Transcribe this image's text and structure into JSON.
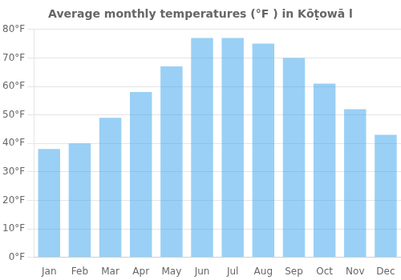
{
  "chart_data": {
    "type": "bar",
    "title": "Average monthly temperatures (°F ) in Kōṭowā l",
    "categories": [
      "Jan",
      "Feb",
      "Mar",
      "Apr",
      "May",
      "Jun",
      "Jul",
      "Aug",
      "Sep",
      "Oct",
      "Nov",
      "Dec"
    ],
    "values": [
      38,
      40,
      49,
      58,
      67,
      77,
      77,
      75,
      70,
      61,
      52,
      43
    ],
    "ylim": [
      0,
      80
    ],
    "yticks": [
      {
        "value": 0,
        "label": "0°F"
      },
      {
        "value": 10,
        "label": "10°F"
      },
      {
        "value": 20,
        "label": "20°F"
      },
      {
        "value": 30,
        "label": "30°F"
      },
      {
        "value": 40,
        "label": "40°F"
      },
      {
        "value": 50,
        "label": "50°F"
      },
      {
        "value": 60,
        "label": "60°F"
      },
      {
        "value": 70,
        "label": "70°F"
      },
      {
        "value": 80,
        "label": "80°F"
      }
    ],
    "grid": true
  }
}
